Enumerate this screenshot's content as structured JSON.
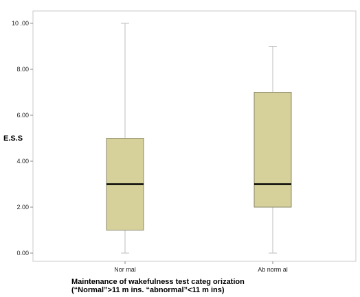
{
  "chart_data": {
    "type": "box",
    "ylabel": "E.S.S",
    "xlabel_lines": [
      "Maintenance of wakefulness test categ orization",
      "(“Normal”>11 m ins. “abnormal”<11 m ins)"
    ],
    "ylim": [
      0,
      10.3
    ],
    "yticks": [
      "0.00",
      "2.00",
      "4.00",
      "6.00",
      "8.00",
      "10 .00"
    ],
    "ytick_values": [
      0,
      2,
      4,
      6,
      8,
      10
    ],
    "categories": [
      "Nor mal",
      "Ab norm al"
    ],
    "boxes": [
      {
        "category": "Nor mal",
        "min": 0,
        "q1": 1,
        "median": 3,
        "q3": 5,
        "max": 10
      },
      {
        "category": "Ab norm al",
        "min": 0,
        "q1": 2,
        "median": 3,
        "q3": 7,
        "max": 9
      }
    ],
    "grid": false,
    "colors": {
      "box_fill": "#d6d09b",
      "box_stroke": "#8a8a6a",
      "median": "#000000",
      "whisker": "#bdbdbd",
      "frame": "#c8c8c8"
    }
  }
}
